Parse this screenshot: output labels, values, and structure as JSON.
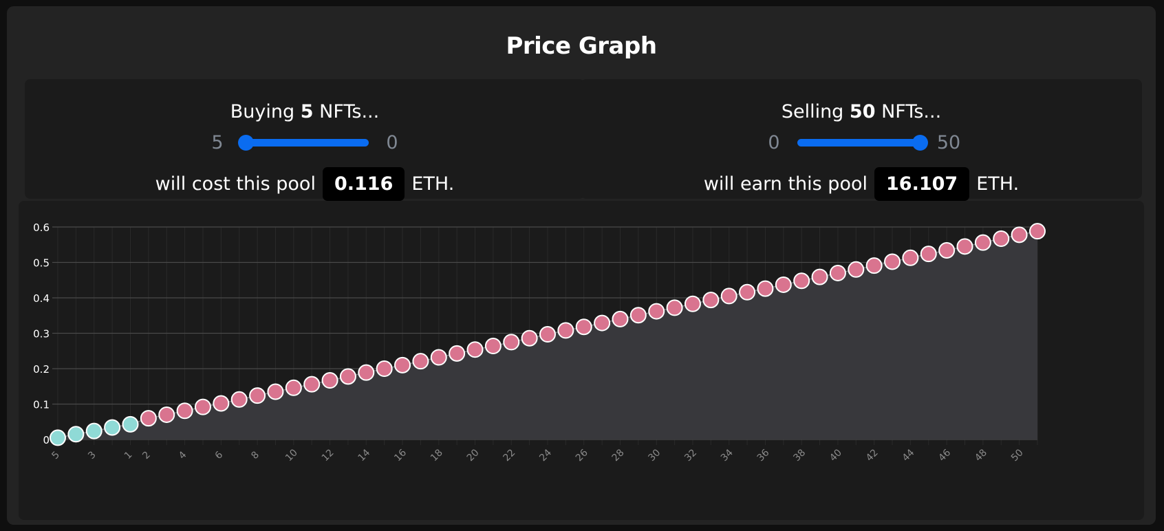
{
  "title": "Price Graph",
  "buy": {
    "prefix": "Buying",
    "count": "5",
    "suffix": "NFTs...",
    "slider_min_label": "5",
    "slider_max_label": "0",
    "slider_fraction": 0,
    "cost_prefix": "will cost this pool",
    "value": "0.116",
    "unit": "ETH."
  },
  "sell": {
    "prefix": "Selling",
    "count": "50",
    "suffix": "NFTs...",
    "slider_min_label": "0",
    "slider_max_label": "50",
    "slider_fraction": 1,
    "cost_prefix": "will earn this pool",
    "value": "16.107",
    "unit": "ETH."
  },
  "colors": {
    "accent": "#0a6cf0",
    "buy_point": "#8fdad6",
    "sell_point": "#d9748f",
    "point_outline": "#ffffff"
  },
  "chart_data": {
    "type": "scatter",
    "x": [
      "5",
      "4",
      "3",
      "2",
      "1",
      "1",
      "2",
      "3",
      "4",
      "5",
      "6",
      "7",
      "8",
      "9",
      "10",
      "11",
      "12",
      "13",
      "14",
      "15",
      "16",
      "17",
      "18",
      "19",
      "20",
      "21",
      "22",
      "23",
      "24",
      "25",
      "26",
      "27",
      "28",
      "29",
      "30",
      "31",
      "32",
      "33",
      "34",
      "35",
      "36",
      "37",
      "38",
      "39",
      "40",
      "41",
      "42",
      "43",
      "44",
      "45",
      "46",
      "47",
      "48",
      "49",
      "50"
    ],
    "tick_labels": [
      "5",
      "",
      "3",
      "",
      "1",
      "2",
      "",
      "4",
      "",
      "6",
      "",
      "8",
      "",
      "10",
      "",
      "12",
      "",
      "14",
      "",
      "16",
      "",
      "18",
      "",
      "20",
      "",
      "22",
      "",
      "24",
      "",
      "26",
      "",
      "28",
      "",
      "30",
      "",
      "32",
      "",
      "34",
      "",
      "36",
      "",
      "38",
      "",
      "40",
      "",
      "42",
      "",
      "44",
      "",
      "46",
      "",
      "48",
      "",
      "50"
    ],
    "series": [
      {
        "values": [
          0.005,
          0.015,
          0.024,
          0.034,
          0.043
        ],
        "color": "#8fdad6"
      },
      {
        "values": [
          0.06,
          0.07,
          0.081,
          0.092,
          0.102,
          0.113,
          0.124,
          0.135,
          0.146,
          0.156,
          0.167,
          0.178,
          0.189,
          0.2,
          0.21,
          0.221,
          0.232,
          0.243,
          0.254,
          0.264,
          0.275,
          0.286,
          0.297,
          0.308,
          0.318,
          0.329,
          0.34,
          0.351,
          0.362,
          0.372,
          0.383,
          0.394,
          0.405,
          0.416,
          0.426,
          0.437,
          0.448,
          0.459,
          0.47,
          0.48,
          0.491,
          0.502,
          0.513,
          0.524,
          0.534,
          0.545,
          0.556,
          0.567,
          0.578,
          0.588
        ],
        "color": "#d9748f"
      }
    ],
    "yticks": [
      "0",
      "0.1",
      "0.2",
      "0.3",
      "0.4",
      "0.5",
      "0.6"
    ],
    "ylim": [
      0,
      0.6
    ],
    "grid": true,
    "area_fill": true
  }
}
